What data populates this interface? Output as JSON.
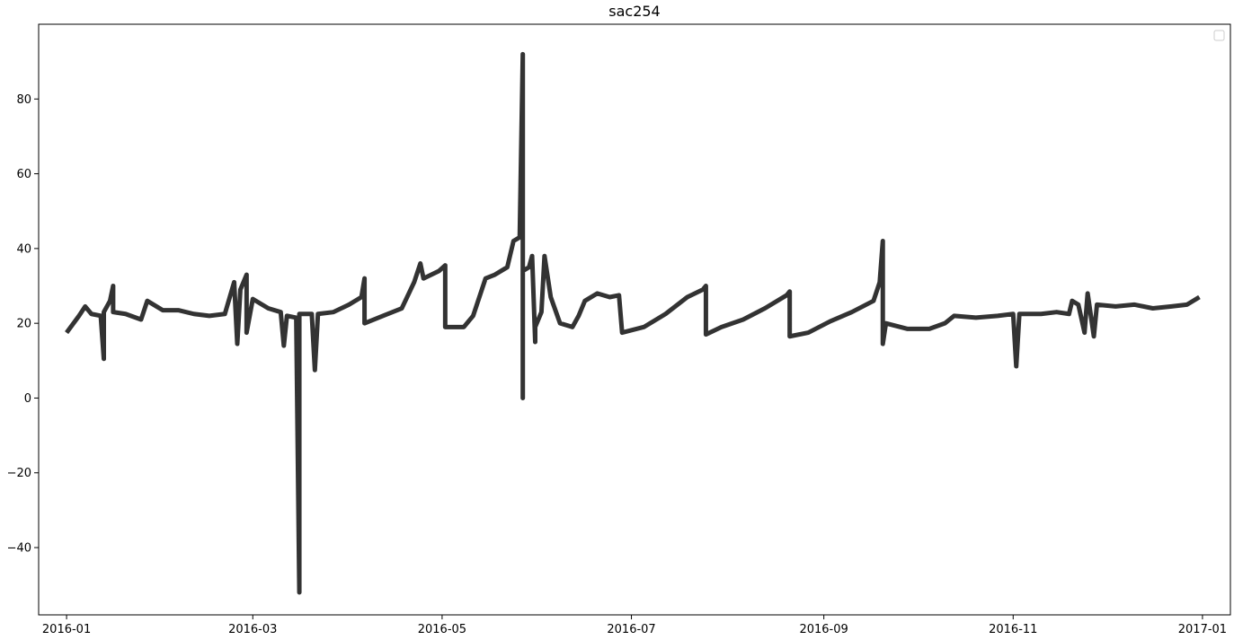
{
  "chart_data": {
    "type": "line",
    "title": "sac254",
    "xlabel": "",
    "ylabel": "",
    "x_axis": {
      "kind": "date",
      "range": [
        "2015-12-23",
        "2017-01-10"
      ],
      "ticks": [
        "2016-01-01",
        "2016-03-01",
        "2016-05-01",
        "2016-07-01",
        "2016-09-01",
        "2016-11-01",
        "2017-01-01"
      ],
      "tick_labels": [
        "2016-01",
        "2016-03",
        "2016-05",
        "2016-07",
        "2016-09",
        "2016-11",
        "2017-01"
      ]
    },
    "y_axis": {
      "range": [
        -58,
        100
      ],
      "ticks": [
        -40,
        -20,
        0,
        20,
        40,
        60,
        80
      ],
      "tick_labels": [
        "−40",
        "−20",
        "0",
        "20",
        "40",
        "60",
        "80"
      ]
    },
    "grid": false,
    "legend": {
      "placement": "top-right",
      "entries": []
    },
    "series": [
      {
        "color": "#333333",
        "points": [
          [
            "2016-01-01",
            17.5
          ],
          [
            "2016-01-05",
            22
          ],
          [
            "2016-01-07",
            24.5
          ],
          [
            "2016-01-09",
            22.5
          ],
          [
            "2016-01-12",
            22
          ],
          [
            "2016-01-13",
            10.5
          ],
          [
            "2016-01-13",
            23
          ],
          [
            "2016-01-15",
            26
          ],
          [
            "2016-01-16",
            30
          ],
          [
            "2016-01-16",
            23
          ],
          [
            "2016-01-20",
            22.5
          ],
          [
            "2016-01-25",
            21
          ],
          [
            "2016-01-27",
            26
          ],
          [
            "2016-02-01",
            23.5
          ],
          [
            "2016-02-06",
            23.5
          ],
          [
            "2016-02-11",
            22.5
          ],
          [
            "2016-02-16",
            22
          ],
          [
            "2016-02-21",
            22.5
          ],
          [
            "2016-02-24",
            31
          ],
          [
            "2016-02-25",
            14.5
          ],
          [
            "2016-02-26",
            29
          ],
          [
            "2016-02-28",
            33
          ],
          [
            "2016-02-28",
            17.5
          ],
          [
            "2016-03-01",
            26.5
          ],
          [
            "2016-03-06",
            24
          ],
          [
            "2016-03-10",
            23
          ],
          [
            "2016-03-11",
            14
          ],
          [
            "2016-03-12",
            22
          ],
          [
            "2016-03-15",
            21.5
          ],
          [
            "2016-03-16",
            -52
          ],
          [
            "2016-03-16",
            22.5
          ],
          [
            "2016-03-20",
            22.5
          ],
          [
            "2016-03-21",
            7.5
          ],
          [
            "2016-03-22",
            22.5
          ],
          [
            "2016-03-27",
            23
          ],
          [
            "2016-04-01",
            25
          ],
          [
            "2016-04-05",
            27
          ],
          [
            "2016-04-06",
            32
          ],
          [
            "2016-04-06",
            20
          ],
          [
            "2016-04-12",
            22
          ],
          [
            "2016-04-18",
            24
          ],
          [
            "2016-04-22",
            31
          ],
          [
            "2016-04-24",
            36
          ],
          [
            "2016-04-25",
            32
          ],
          [
            "2016-04-30",
            34
          ],
          [
            "2016-05-02",
            35.5
          ],
          [
            "2016-05-02",
            19
          ],
          [
            "2016-05-08",
            19
          ],
          [
            "2016-05-11",
            22
          ],
          [
            "2016-05-15",
            32
          ],
          [
            "2016-05-18",
            33
          ],
          [
            "2016-05-22",
            35
          ],
          [
            "2016-05-24",
            42
          ],
          [
            "2016-05-26",
            43
          ],
          [
            "2016-05-27",
            92
          ],
          [
            "2016-05-27",
            0
          ],
          [
            "2016-05-27",
            34
          ],
          [
            "2016-05-29",
            35
          ],
          [
            "2016-05-30",
            38
          ],
          [
            "2016-05-31",
            15
          ],
          [
            "2016-05-31",
            19
          ],
          [
            "2016-06-02",
            23
          ],
          [
            "2016-06-03",
            38
          ],
          [
            "2016-06-05",
            27
          ],
          [
            "2016-06-08",
            20
          ],
          [
            "2016-06-12",
            19
          ],
          [
            "2016-06-14",
            22
          ],
          [
            "2016-06-16",
            26
          ],
          [
            "2016-06-20",
            28
          ],
          [
            "2016-06-24",
            27
          ],
          [
            "2016-06-27",
            27.5
          ],
          [
            "2016-06-28",
            17.5
          ],
          [
            "2016-07-05",
            19
          ],
          [
            "2016-07-12",
            22.5
          ],
          [
            "2016-07-19",
            27
          ],
          [
            "2016-07-24",
            29
          ],
          [
            "2016-07-25",
            30
          ],
          [
            "2016-07-25",
            17
          ],
          [
            "2016-07-30",
            19
          ],
          [
            "2016-08-06",
            21
          ],
          [
            "2016-08-13",
            24
          ],
          [
            "2016-08-20",
            27.5
          ],
          [
            "2016-08-21",
            28.5
          ],
          [
            "2016-08-21",
            16.5
          ],
          [
            "2016-08-27",
            17.5
          ],
          [
            "2016-09-03",
            20.5
          ],
          [
            "2016-09-10",
            23
          ],
          [
            "2016-09-17",
            26
          ],
          [
            "2016-09-19",
            31
          ],
          [
            "2016-09-20",
            42
          ],
          [
            "2016-09-20",
            14.5
          ],
          [
            "2016-09-21",
            20
          ],
          [
            "2016-09-28",
            18.5
          ],
          [
            "2016-10-05",
            18.5
          ],
          [
            "2016-10-10",
            20
          ],
          [
            "2016-10-13",
            22
          ],
          [
            "2016-10-20",
            21.5
          ],
          [
            "2016-10-27",
            22
          ],
          [
            "2016-11-01",
            22.5
          ],
          [
            "2016-11-02",
            8.5
          ],
          [
            "2016-11-03",
            22.5
          ],
          [
            "2016-11-10",
            22.5
          ],
          [
            "2016-11-15",
            23
          ],
          [
            "2016-11-19",
            22.5
          ],
          [
            "2016-11-20",
            26
          ],
          [
            "2016-11-22",
            25
          ],
          [
            "2016-11-24",
            17.5
          ],
          [
            "2016-11-25",
            28
          ],
          [
            "2016-11-27",
            16.5
          ],
          [
            "2016-11-28",
            25
          ],
          [
            "2016-12-04",
            24.5
          ],
          [
            "2016-12-10",
            25
          ],
          [
            "2016-12-16",
            24
          ],
          [
            "2016-12-22",
            24.5
          ],
          [
            "2016-12-27",
            25
          ],
          [
            "2016-12-31",
            27
          ]
        ]
      }
    ]
  }
}
